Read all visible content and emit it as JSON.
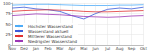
{
  "chart_data": {
    "type": "line",
    "categories": [
      "Nov",
      "Dez",
      "Jan",
      "Feb",
      "Mär",
      "Apr",
      "Mai",
      "Jun",
      "Jul",
      "Aug",
      "Sep",
      "Okt"
    ],
    "series": [
      {
        "name": "Höchster Wasserstand",
        "color": "#4dabf7",
        "values": [
          95,
          96,
          97,
          97,
          96,
          95,
          94,
          94,
          94,
          95,
          95,
          96
        ]
      },
      {
        "name": "Wasserstand aktuell",
        "color": "#3b5bdb",
        "values": [
          88,
          90,
          86,
          84,
          80,
          70,
          62,
          75,
          85,
          88,
          86,
          90
        ]
      },
      {
        "name": "Mittlerer Wasserstand",
        "color": "#e03131",
        "values": [
          80,
          82,
          83,
          84,
          83,
          82,
          80,
          79,
          79,
          80,
          81,
          82
        ]
      },
      {
        "name": "Niedrigster Wasserstand",
        "color": "#9c36b5",
        "values": [
          70,
          72,
          74,
          73,
          72,
          70,
          68,
          67,
          66,
          67,
          69,
          70
        ]
      }
    ],
    "ylim": [
      0,
      100
    ],
    "yticks": [
      0,
      25,
      50,
      75,
      100
    ],
    "grid": true,
    "legend": "lower left"
  }
}
